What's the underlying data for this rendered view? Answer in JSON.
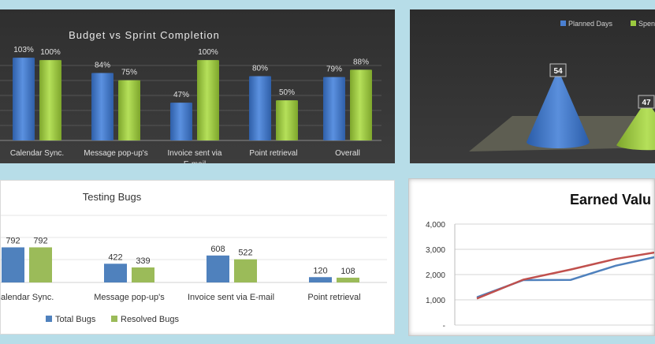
{
  "chart_data": [
    {
      "type": "bar",
      "title": "Budget vs Sprint  Completion",
      "categories": [
        "Calendar Sync.",
        "Message pop-up's",
        "Invoice sent via E-mail",
        "Point retrieval",
        "Overall"
      ],
      "series": [
        {
          "values": [
            103,
            84,
            47,
            80,
            79
          ],
          "labels": [
            "103%",
            "84%",
            "47%",
            "80%",
            "79%"
          ],
          "color": "#4a7fd0"
        },
        {
          "values": [
            100,
            75,
            100,
            50,
            88
          ],
          "labels": [
            "100%",
            "75%",
            "100%",
            "50%",
            "88%"
          ],
          "color": "#9bc93f"
        }
      ],
      "ylim": [
        0,
        110
      ],
      "grid": true
    },
    {
      "type": "bar",
      "subtype": "3d-cone",
      "series": [
        {
          "name": "Planned Days",
          "values": [
            54
          ],
          "labels": [
            "54"
          ],
          "color": "#4a7fd0"
        },
        {
          "name": "Spen",
          "values": [
            47
          ],
          "labels": [
            "47"
          ],
          "color": "#9bc93f"
        }
      ],
      "legend": "top-right"
    },
    {
      "type": "bar",
      "title": "Testing Bugs",
      "categories": [
        "alendar Sync.",
        "Message pop-up's",
        "Invoice sent via E-mail",
        "Point retrieval"
      ],
      "series": [
        {
          "name": "Total Bugs",
          "values": [
            792,
            422,
            608,
            120
          ],
          "labels": [
            "792",
            "422",
            "608",
            "120"
          ],
          "color": "#4f81bd"
        },
        {
          "name": "Resolved Bugs",
          "values": [
            792,
            339,
            522,
            108
          ],
          "labels": [
            "792",
            "339",
            "522",
            "108"
          ],
          "color": "#9bbb59"
        }
      ],
      "ylim": [
        0,
        1000
      ],
      "legend": "bottom"
    },
    {
      "type": "line",
      "title": "Earned Valu",
      "yticks": [
        "4,000",
        "3,000",
        "2,000",
        "1,000",
        "-"
      ],
      "ylim": [
        0,
        4000
      ],
      "x": [
        1,
        2,
        3,
        4,
        5
      ],
      "series": [
        {
          "values": [
            1100,
            1780,
            1790,
            2350,
            2700
          ],
          "color": "#4f81bd"
        },
        {
          "values": [
            1050,
            1800,
            2200,
            2620,
            2880
          ],
          "color": "#c0504d"
        }
      ],
      "grid": true
    }
  ]
}
